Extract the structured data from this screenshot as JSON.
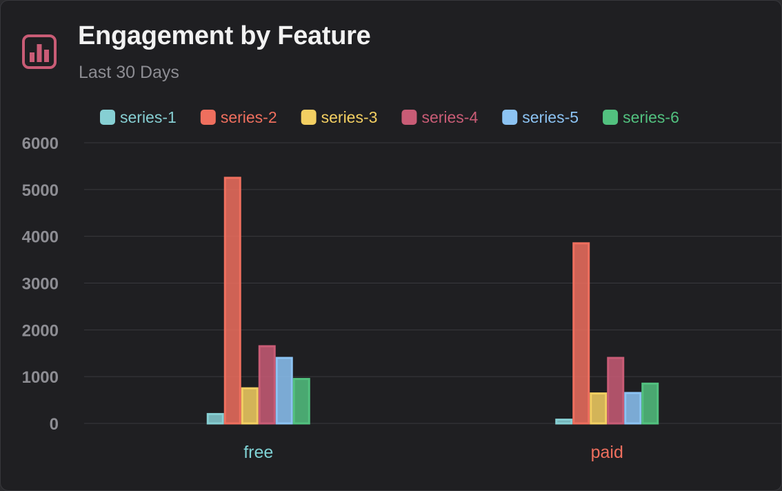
{
  "header": {
    "title": "Engagement by Feature",
    "subtitle": "Last 30 Days",
    "icon": "bar-chart-icon",
    "icon_color": "#c95c76"
  },
  "chart_data": {
    "type": "bar",
    "categories": [
      "free",
      "paid"
    ],
    "category_label_colors": [
      "#7fd1d4",
      "#ef6f5e"
    ],
    "series": [
      {
        "name": "series-1",
        "color": "#86cfd3",
        "values": [
          200,
          80
        ]
      },
      {
        "name": "series-2",
        "color": "#ef6f5e",
        "values": [
          5250,
          3850
        ]
      },
      {
        "name": "series-3",
        "color": "#f3cf62",
        "values": [
          750,
          640
        ]
      },
      {
        "name": "series-4",
        "color": "#c95c76",
        "values": [
          1650,
          1400
        ]
      },
      {
        "name": "series-5",
        "color": "#8cc3f3",
        "values": [
          1400,
          650
        ]
      },
      {
        "name": "series-6",
        "color": "#52c17f",
        "values": [
          950,
          850
        ]
      }
    ],
    "yticks": [
      0,
      1000,
      2000,
      3000,
      4000,
      5000,
      6000
    ],
    "ylim": [
      0,
      6000
    ],
    "grid": true,
    "legend_position": "top-left"
  }
}
